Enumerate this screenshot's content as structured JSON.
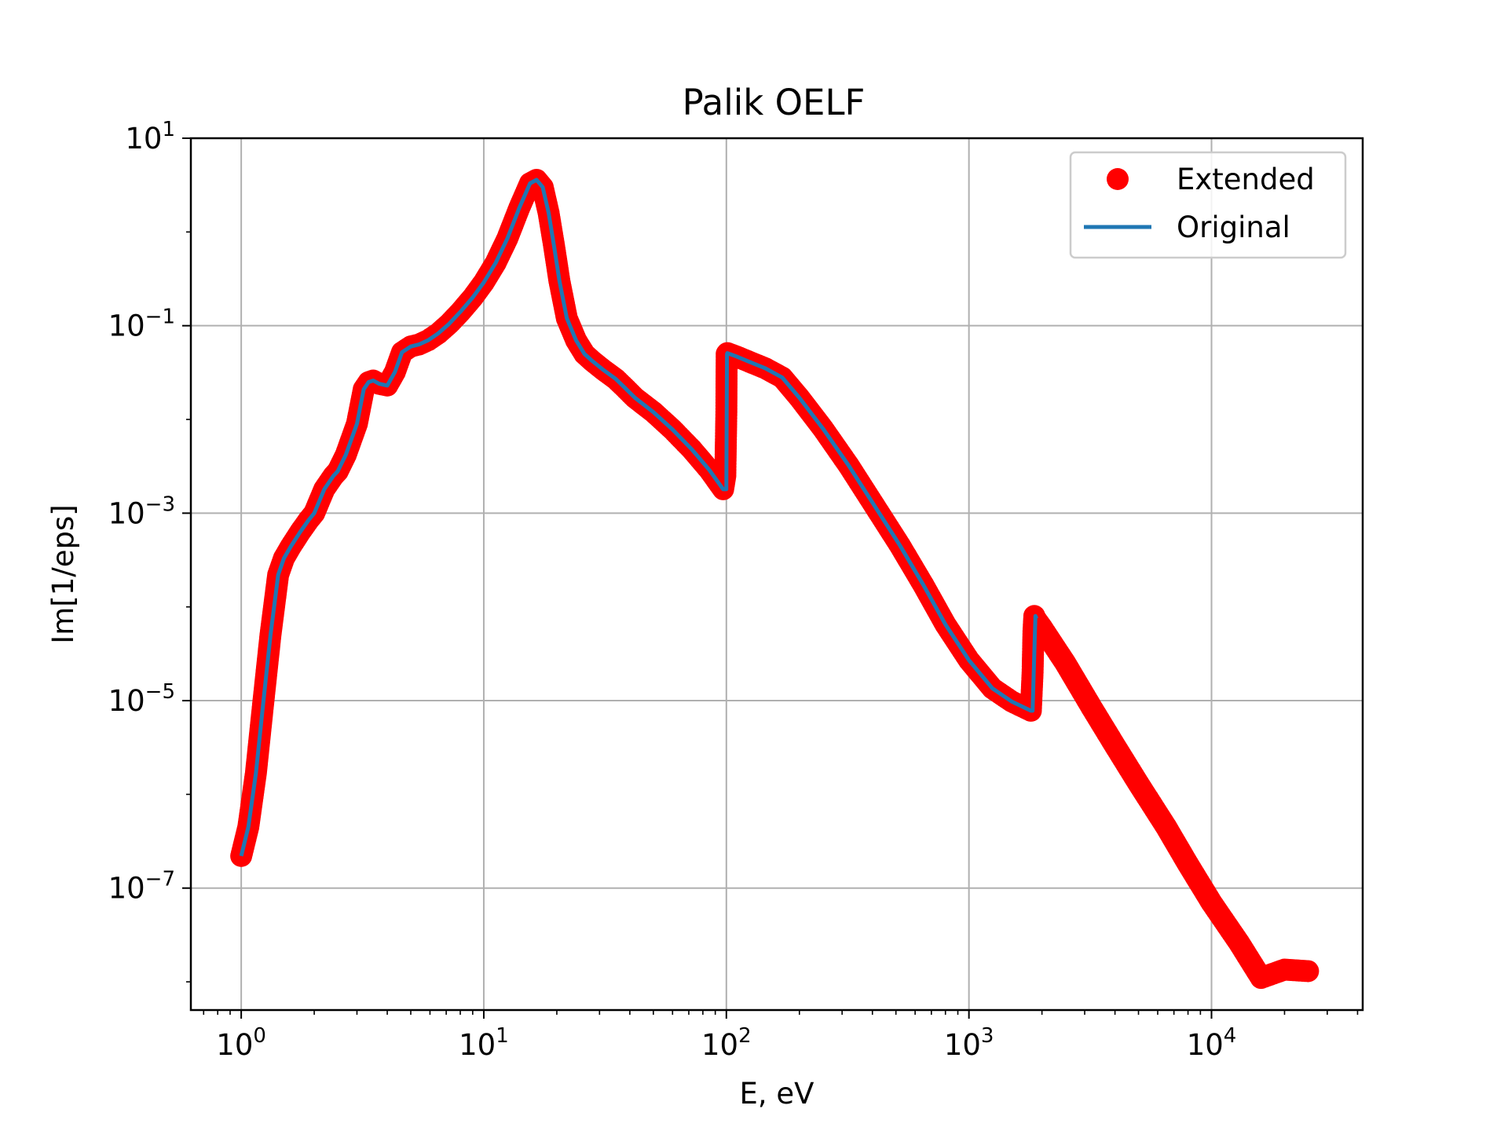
{
  "chart_data": {
    "type": "line",
    "title": "Palik OELF",
    "xlabel": "E, eV",
    "ylabel": "Im[1/eps]",
    "x_scale": "log",
    "y_scale": "log",
    "xlim": [
      0.62,
      42000
    ],
    "ylim": [
      5e-09,
      10
    ],
    "grid": true,
    "legend_position": "top-right",
    "x_ticks": [
      {
        "base": "10",
        "exp": "0"
      },
      {
        "base": "10",
        "exp": "1"
      },
      {
        "base": "10",
        "exp": "2"
      },
      {
        "base": "10",
        "exp": "3"
      },
      {
        "base": "10",
        "exp": "4"
      }
    ],
    "y_ticks": [
      {
        "base": "10",
        "exp": "1"
      },
      {
        "base": "10",
        "exp": "−1"
      },
      {
        "base": "10",
        "exp": "−3"
      },
      {
        "base": "10",
        "exp": "−5"
      },
      {
        "base": "10",
        "exp": "−7"
      }
    ],
    "series": [
      {
        "name": "Extended",
        "style": "markers",
        "color": "#ff0000",
        "x": [
          1.0,
          1.07,
          1.15,
          1.23,
          1.32,
          1.42,
          1.5,
          1.6,
          1.75,
          1.9,
          2.0,
          2.2,
          2.4,
          2.5,
          2.7,
          3.0,
          3.2,
          3.35,
          3.5,
          3.7,
          4.0,
          4.3,
          4.6,
          5.0,
          5.4,
          5.9,
          6.5,
          7.2,
          8.0,
          9.0,
          10.0,
          11.2,
          12.5,
          14.0,
          15.5,
          16.5,
          17.5,
          18.5,
          19.5,
          20.5,
          22.0,
          24.0,
          26.0,
          28.0,
          31.0,
          35.0,
          38.0,
          42.0,
          50.0,
          60.0,
          72.0,
          85.0,
          97.0,
          99.0,
          100.0,
          100.3,
          100.6,
          101.0,
          110.0,
          125.0,
          145.0,
          170.0,
          200.0,
          250.0,
          320.0,
          400.0,
          520.0,
          650.0,
          800.0,
          1000.0,
          1250.0,
          1500.0,
          1800.0,
          1830.0,
          1845.0,
          1860.0,
          1880.0,
          2000.0,
          2500.0,
          3200.0,
          4000.0,
          5000.0,
          6500.0,
          8000.0,
          10000.0,
          13000.0,
          16000.0,
          20000.0,
          25000.0
        ],
        "y": [
          2.2e-07,
          4.5e-07,
          1.7e-06,
          9e-06,
          5e-05,
          0.00022,
          0.00033,
          0.00044,
          0.00063,
          0.00085,
          0.001,
          0.0018,
          0.0025,
          0.0028,
          0.0042,
          0.009,
          0.021,
          0.025,
          0.026,
          0.024,
          0.023,
          0.032,
          0.052,
          0.06,
          0.063,
          0.07,
          0.083,
          0.105,
          0.14,
          0.2,
          0.29,
          0.47,
          0.85,
          1.8,
          3.3,
          3.6,
          3.0,
          1.6,
          0.7,
          0.3,
          0.12,
          0.07,
          0.05,
          0.042,
          0.034,
          0.027,
          0.022,
          0.017,
          0.012,
          0.0078,
          0.0048,
          0.0029,
          0.0018,
          0.0025,
          0.012,
          0.05,
          0.05,
          0.051,
          0.047,
          0.041,
          0.035,
          0.028,
          0.017,
          0.008,
          0.0032,
          0.0013,
          0.00045,
          0.00017,
          6.5e-05,
          2.7e-05,
          1.35e-05,
          9.8e-06,
          7.8e-06,
          2e-05,
          5.5e-05,
          8e-05,
          7.5e-05,
          6e-05,
          2.5e-05,
          8.5e-06,
          3.3e-06,
          1.3e-06,
          4.5e-07,
          1.8e-07,
          7e-08,
          2.6e-08,
          1.1e-08,
          1.35e-08,
          1.3e-08
        ]
      },
      {
        "name": "Original",
        "style": "line",
        "color": "#1f77b4",
        "x": [
          1.0,
          1.07,
          1.15,
          1.23,
          1.32,
          1.42,
          1.5,
          1.6,
          1.75,
          1.9,
          2.0,
          2.2,
          2.4,
          2.5,
          2.7,
          3.0,
          3.2,
          3.35,
          3.5,
          3.7,
          4.0,
          4.3,
          4.6,
          5.0,
          5.4,
          5.9,
          6.5,
          7.2,
          8.0,
          9.0,
          10.0,
          11.2,
          12.5,
          14.0,
          15.5,
          16.5,
          17.5,
          18.5,
          19.5,
          20.5,
          22.0,
          24.0,
          26.0,
          28.0,
          31.0,
          35.0,
          38.0,
          42.0,
          50.0,
          60.0,
          72.0,
          85.0,
          97.0,
          99.0,
          100.0,
          100.6,
          101.0,
          110.0,
          125.0,
          145.0,
          170.0,
          200.0,
          250.0,
          320.0,
          400.0,
          520.0,
          650.0,
          800.0,
          1000.0,
          1250.0,
          1500.0,
          1800.0,
          1830.0,
          1880.0,
          1900.0
        ],
        "y": [
          2.2e-07,
          4.5e-07,
          1.7e-06,
          9e-06,
          5e-05,
          0.00022,
          0.00033,
          0.00044,
          0.00063,
          0.00085,
          0.001,
          0.0018,
          0.0025,
          0.0028,
          0.0042,
          0.009,
          0.021,
          0.025,
          0.026,
          0.024,
          0.023,
          0.032,
          0.052,
          0.06,
          0.063,
          0.07,
          0.083,
          0.105,
          0.14,
          0.2,
          0.29,
          0.47,
          0.85,
          1.8,
          3.3,
          3.6,
          3.0,
          1.6,
          0.7,
          0.3,
          0.12,
          0.07,
          0.05,
          0.042,
          0.034,
          0.027,
          0.022,
          0.017,
          0.012,
          0.0078,
          0.0048,
          0.0029,
          0.0018,
          0.0018,
          0.0018,
          0.05,
          0.051,
          0.047,
          0.041,
          0.035,
          0.028,
          0.017,
          0.008,
          0.0032,
          0.0013,
          0.00045,
          0.00017,
          6.5e-05,
          2.7e-05,
          1.35e-05,
          9.8e-06,
          7.8e-06,
          7.8e-06,
          8e-05,
          7.5e-05
        ]
      }
    ]
  }
}
